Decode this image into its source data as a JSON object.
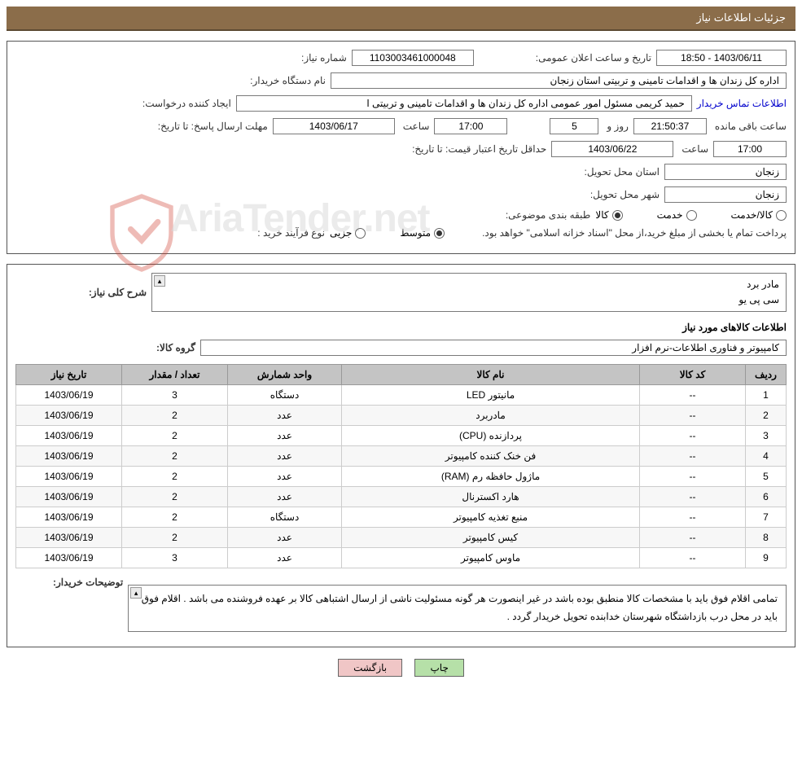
{
  "header": {
    "title": "جزئیات اطلاعات نیاز"
  },
  "fields": {
    "need_number_label": "شماره نیاز:",
    "need_number": "1103003461000048",
    "announce_label": "تاریخ و ساعت اعلان عمومی:",
    "announce_value": "1403/06/11 - 18:50",
    "buyer_org_label": "نام دستگاه خریدار:",
    "buyer_org": "اداره کل زندان ها و اقدامات تامینی و تربیتی استان زنجان",
    "requester_label": "ایجاد کننده درخواست:",
    "requester": "حمید کریمی مسئول امور عمومی اداره کل زندان ها و اقدامات تامینی و تربیتی ا",
    "contact_link": "اطلاعات تماس خریدار",
    "deadline_label": "مهلت ارسال پاسخ:",
    "ta1": "تا تاریخ:",
    "deadline_date": "1403/06/17",
    "saat": "ساعت",
    "deadline_time": "17:00",
    "days": "5",
    "rooz_va": "روز و",
    "countdown": "21:50:37",
    "remain": "ساعت باقی مانده",
    "validity_label": "حداقل تاریخ اعتبار قیمت:",
    "ta2": "تا تاریخ:",
    "validity_date": "1403/06/22",
    "validity_time": "17:00",
    "province_label": "استان محل تحویل:",
    "province": "زنجان",
    "city_label": "شهر محل تحویل:",
    "city": "زنجان",
    "category_label": "طبقه بندی موضوعی:",
    "cat_goods": "کالا",
    "cat_service": "خدمت",
    "cat_both": "کالا/خدمت",
    "process_label": "نوع فرآیند خرید :",
    "proc_partial": "جزیی",
    "proc_medium": "متوسط",
    "payment_note": "پرداخت تمام یا بخشی از مبلغ خرید،از محل \"اسناد خزانه اسلامی\" خواهد بود."
  },
  "desc": {
    "label": "شرح کلی نیاز:",
    "line1": "مادر برد",
    "line2": "سی پی یو"
  },
  "items_section": {
    "title": "اطلاعات کالاهای مورد نیاز",
    "group_label": "گروه کالا:",
    "group_value": "کامپیوتر و فناوری اطلاعات-نرم افزار"
  },
  "table": {
    "headers": {
      "row": "ردیف",
      "code": "کد کالا",
      "name": "نام کالا",
      "unit": "واحد شمارش",
      "qty": "تعداد / مقدار",
      "date": "تاریخ نیاز"
    },
    "rows": [
      {
        "n": "1",
        "code": "--",
        "name": "مانیتور LED",
        "unit": "دستگاه",
        "qty": "3",
        "date": "1403/06/19"
      },
      {
        "n": "2",
        "code": "--",
        "name": "مادربرد",
        "unit": "عدد",
        "qty": "2",
        "date": "1403/06/19"
      },
      {
        "n": "3",
        "code": "--",
        "name": "پردازنده (CPU)",
        "unit": "عدد",
        "qty": "2",
        "date": "1403/06/19"
      },
      {
        "n": "4",
        "code": "--",
        "name": "فن خنک کننده کامپیوتر",
        "unit": "عدد",
        "qty": "2",
        "date": "1403/06/19"
      },
      {
        "n": "5",
        "code": "--",
        "name": "ماژول حافظه رم (RAM)",
        "unit": "عدد",
        "qty": "2",
        "date": "1403/06/19"
      },
      {
        "n": "6",
        "code": "--",
        "name": "هارد اکسترنال",
        "unit": "عدد",
        "qty": "2",
        "date": "1403/06/19"
      },
      {
        "n": "7",
        "code": "--",
        "name": "منبع تغذیه کامپیوتر",
        "unit": "دستگاه",
        "qty": "2",
        "date": "1403/06/19"
      },
      {
        "n": "8",
        "code": "--",
        "name": "کیس کامپیوتر",
        "unit": "عدد",
        "qty": "2",
        "date": "1403/06/19"
      },
      {
        "n": "9",
        "code": "--",
        "name": "ماوس کامپیوتر",
        "unit": "عدد",
        "qty": "3",
        "date": "1403/06/19"
      }
    ]
  },
  "buyer_note": {
    "label": "توضیحات خریدار:",
    "text": "تمامی اقلام فوق باید با مشخصات کالا منطبق بوده باشد در غیر اینصورت هر گونه مسئولیت ناشی از ارسال اشتباهی کالا بر عهده فروشنده می باشد . اقلام فوق باید در محل درب بازداشتگاه شهرستان خدابنده تحویل خریدار گردد ."
  },
  "buttons": {
    "print": "چاپ",
    "back": "بازگشت"
  },
  "watermark": "AriaTender.net",
  "colors": {
    "header_bg": "#8b6d4a",
    "header_text": "#ffffff",
    "border": "#555555",
    "field_border": "#7a7a7a",
    "th_bg": "#c4c4c4",
    "link": "#0000cc",
    "btn_green": "#b6e0a8",
    "btn_pink": "#f0c6c6"
  }
}
